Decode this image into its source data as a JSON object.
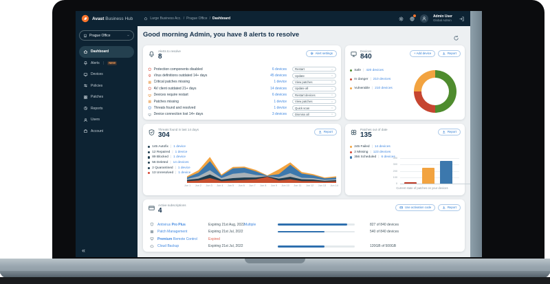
{
  "topbar": {
    "brand_bold": "Avast",
    "brand_rest": " Business Hub",
    "breadcrumb": [
      "Large Business Acc.",
      "Prague Office",
      "Dashboard"
    ],
    "user_name": "Admin User",
    "user_role": "Global Admin"
  },
  "sidebar": {
    "org_selector": "Prague Office",
    "collapse_glyph": "«",
    "items": [
      {
        "label": "Dashboard",
        "icon": "home",
        "active": true,
        "badge": ""
      },
      {
        "label": "Alerts",
        "icon": "bell",
        "active": false,
        "badge": "NEW"
      },
      {
        "label": "Devices",
        "icon": "monitor",
        "active": false,
        "badge": ""
      },
      {
        "label": "Policies",
        "icon": "sliders",
        "active": false,
        "badge": ""
      },
      {
        "label": "Patches",
        "icon": "grid",
        "active": false,
        "badge": ""
      },
      {
        "label": "Reports",
        "icon": "pie",
        "active": false,
        "badge": ""
      },
      {
        "label": "Users",
        "icon": "user",
        "active": false,
        "badge": ""
      },
      {
        "label": "Account",
        "icon": "briefcase",
        "active": false,
        "badge": ""
      }
    ]
  },
  "main": {
    "greeting": "Good morning Admin, you have 8 alerts to resolve"
  },
  "alerts_card": {
    "title": "Alerts to resolve",
    "count": "8",
    "settings_label": "Alert settings",
    "rows": [
      {
        "icon": "shield",
        "color": "#d64533",
        "label": "Protection components disabled",
        "devices": "6 devices",
        "action": "Restart"
      },
      {
        "icon": "bell",
        "color": "#d64533",
        "label": "Virus definitions outdated 14+ days",
        "devices": "45 devices",
        "action": "Update"
      },
      {
        "icon": "grid",
        "color": "#e8933d",
        "label": "Critical patches missing",
        "devices": "1 device",
        "action": "View patches"
      },
      {
        "icon": "shield",
        "color": "#d64533",
        "label": "AV client outdated 21+ days",
        "devices": "14 devices",
        "action": "Update all"
      },
      {
        "icon": "monitor",
        "color": "#e8933d",
        "label": "Devices require restart",
        "devices": "6 devices",
        "action": "Restart devices"
      },
      {
        "icon": "grid",
        "color": "#e8933d",
        "label": "Patches missing",
        "devices": "1 device",
        "action": "View patches"
      },
      {
        "icon": "shield",
        "color": "#3c78c8",
        "label": "Threats found and resolved",
        "devices": "1 device",
        "action": "Quick scan"
      },
      {
        "icon": "monitor",
        "color": "#8a98a2",
        "label": "Device connection lost 14+ days",
        "devices": "3 devices",
        "action": "Dismiss all"
      }
    ]
  },
  "devices_card": {
    "title": "Devices",
    "count": "840",
    "add_label": "+ Add device",
    "report_label": "Report",
    "legend": [
      {
        "label": "Safe",
        "devices": "420 devices",
        "dot": "#4f8c2e"
      },
      {
        "label": "In danger",
        "devices": "210 devices",
        "dot": "#c64530"
      },
      {
        "label": "Vulnerable",
        "devices": "210 devices",
        "dot": "#f2a340"
      }
    ]
  },
  "threats_card": {
    "title": "Threats found in last 14 days",
    "count": "304",
    "report_label": "Report",
    "legend": [
      {
        "count": "145",
        "label": "Autofix",
        "devices": "1 device",
        "dot": "#1d3c4e"
      },
      {
        "count": "12",
        "label": "Repaired",
        "devices": "1 device",
        "dot": "#1d3c4e"
      },
      {
        "count": "89",
        "label": "Blocked",
        "devices": "1 device",
        "dot": "#1d3c4e"
      },
      {
        "count": "56",
        "label": "Deleted",
        "devices": "14 devices",
        "dot": "#1d3c4e"
      },
      {
        "count": "2",
        "label": "Quarantined",
        "devices": "1 device",
        "dot": "#1d3c4e"
      },
      {
        "count": "13",
        "label": "Unresolved",
        "devices": "1 device",
        "dot": "#d64533"
      }
    ]
  },
  "patches_card": {
    "title": "Patches out of date",
    "count": "135",
    "report_label": "Report",
    "caption": "Current state of patches on your devices",
    "legend": [
      {
        "count": "245",
        "label": "Failed",
        "devices": "14 devices",
        "dot": "#f2a340"
      },
      {
        "count": "2",
        "label": "Missing",
        "devices": "123 devices",
        "dot": "#d64533"
      },
      {
        "count": "356",
        "label": "Scheduled",
        "devices": "6 devices",
        "dot": "#3c78ad"
      }
    ]
  },
  "subs_card": {
    "title": "Active subscriptions",
    "count": "4",
    "activation_label": "Use activation code",
    "report_label": "Report",
    "rows": [
      {
        "icon": "shield",
        "pre": "Antivirus ",
        "bold": "Pro Plus",
        "post": "",
        "expiry": "Expiring 21st Aug, 2022",
        "expired": false,
        "extra": "Multiple",
        "progress_pct": 90,
        "usage": "827 of 840 devices"
      },
      {
        "icon": "grid",
        "pre": "Patch Management",
        "bold": "",
        "post": "",
        "expiry": "Expiring 21st Jul, 2022",
        "expired": false,
        "extra": "",
        "progress_pct": 61,
        "usage": "540 of 840 devices"
      },
      {
        "icon": "monitor",
        "pre": "",
        "bold": "Premium",
        "post": " Remote Control",
        "expiry": "Expired",
        "expired": true,
        "extra": "",
        "progress_pct": null,
        "usage": ""
      },
      {
        "icon": "cloud",
        "pre": "Cloud Backup",
        "bold": "",
        "post": "",
        "expiry": "Expiring 21st Jul, 2022",
        "expired": false,
        "extra": "",
        "progress_pct": 61,
        "usage": "120GB of 500GB"
      }
    ]
  },
  "chart_data": [
    {
      "type": "pie",
      "donut": true,
      "title": "Devices",
      "labels": [
        "Safe",
        "In danger",
        "Vulnerable"
      ],
      "values": [
        420,
        210,
        210
      ],
      "colors": [
        "#4f8c2e",
        "#c64530",
        "#f2a340"
      ]
    },
    {
      "type": "area",
      "stacked": true,
      "title": "Threats found in last 14 days",
      "x": [
        "Jun 1",
        "Jun 2",
        "Jun 3",
        "Jun 4",
        "Jun 5",
        "Jun 6",
        "Jun 7",
        "Jun 8",
        "Jun 9",
        "Jun 10",
        "Jun 11",
        "Jun 12",
        "Jun 13",
        "Jun 14"
      ],
      "series": [
        {
          "name": "red-layer",
          "color": "#c8502f",
          "values": [
            6,
            8,
            16,
            6,
            8,
            10,
            12,
            20,
            8,
            12,
            6,
            6,
            4,
            5
          ]
        },
        {
          "name": "navy-layer",
          "color": "#1d3c4e",
          "values": [
            4,
            6,
            12,
            5,
            8,
            8,
            6,
            2,
            6,
            8,
            6,
            5,
            3,
            4
          ]
        },
        {
          "name": "gray-layer",
          "color": "#a9b2b8",
          "values": [
            3,
            8,
            14,
            5,
            14,
            16,
            8,
            1,
            5,
            12,
            5,
            5,
            3,
            3
          ]
        },
        {
          "name": "blue-layer",
          "color": "#3c78ad",
          "values": [
            5,
            12,
            30,
            8,
            18,
            16,
            12,
            1,
            10,
            28,
            14,
            9,
            5,
            6
          ]
        },
        {
          "name": "orange-layer",
          "color": "#f2a340",
          "values": [
            4,
            8,
            14,
            4,
            5,
            4,
            5,
            1,
            16,
            8,
            5,
            4,
            3,
            4
          ]
        }
      ]
    },
    {
      "type": "bar",
      "title": "Current state of patches on your devices",
      "categories": [
        "Missing",
        "Failed",
        "Scheduled"
      ],
      "values": [
        2,
        245,
        356
      ],
      "colors": [
        "#bf3a25",
        "#f2a340",
        "#3c78ad"
      ],
      "ylim": [
        0,
        400
      ],
      "yticks": [
        0,
        100,
        200,
        300,
        400
      ]
    }
  ]
}
